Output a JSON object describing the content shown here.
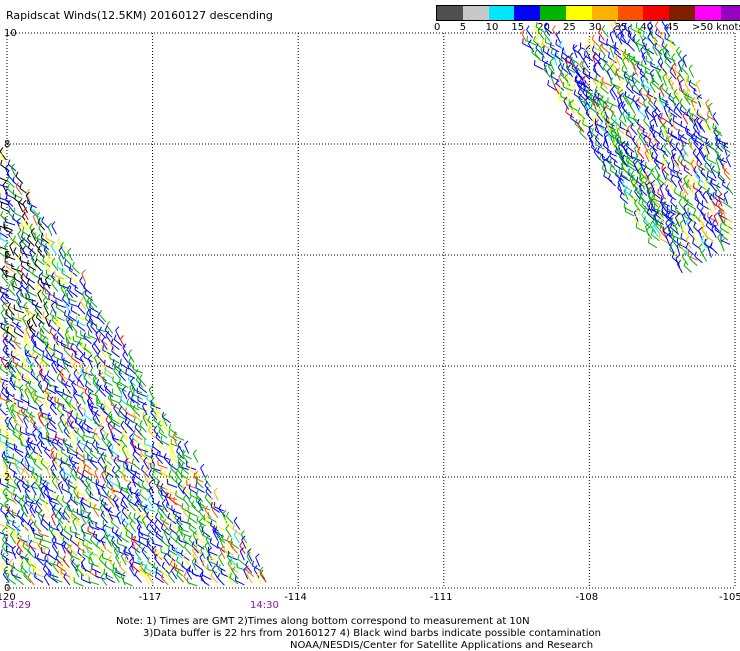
{
  "title": "Rapidscat Winds(12.5KM) 20160127 descending",
  "legend": {
    "colors": [
      "#505050",
      "#c8c8c8",
      "#00e6ff",
      "#0000ff",
      "#00b400",
      "#ffff00",
      "#ffb000",
      "#ff5000",
      "#ff0000",
      "#802000",
      "#ff00ff",
      "#9800c0",
      "#400070"
    ],
    "labels": [
      "0",
      "5",
      "10",
      "15",
      "20",
      "25",
      "30",
      "35",
      "40",
      "45",
      ">50 knots"
    ]
  },
  "axes": {
    "y_ticks": [
      "10",
      "8",
      "6",
      "4",
      "2",
      "0"
    ],
    "x_ticks": [
      "-120",
      "-117",
      "-114",
      "-111",
      "-108",
      "-105"
    ],
    "xlim": [
      -120,
      -105
    ],
    "ylim": [
      0,
      10
    ]
  },
  "times": {
    "left": "14:29",
    "right": "14:30"
  },
  "notes": {
    "line1": "Note: 1) Times are GMT 2)Times along bottom correspond to measurement at 10N",
    "line2": "3)Data buffer is 22 hrs from 20160127 4) Black wind barbs indicate possible contamination",
    "line3": "NOAA/NESDIS/Center for Satellite Applications and Research"
  }
}
